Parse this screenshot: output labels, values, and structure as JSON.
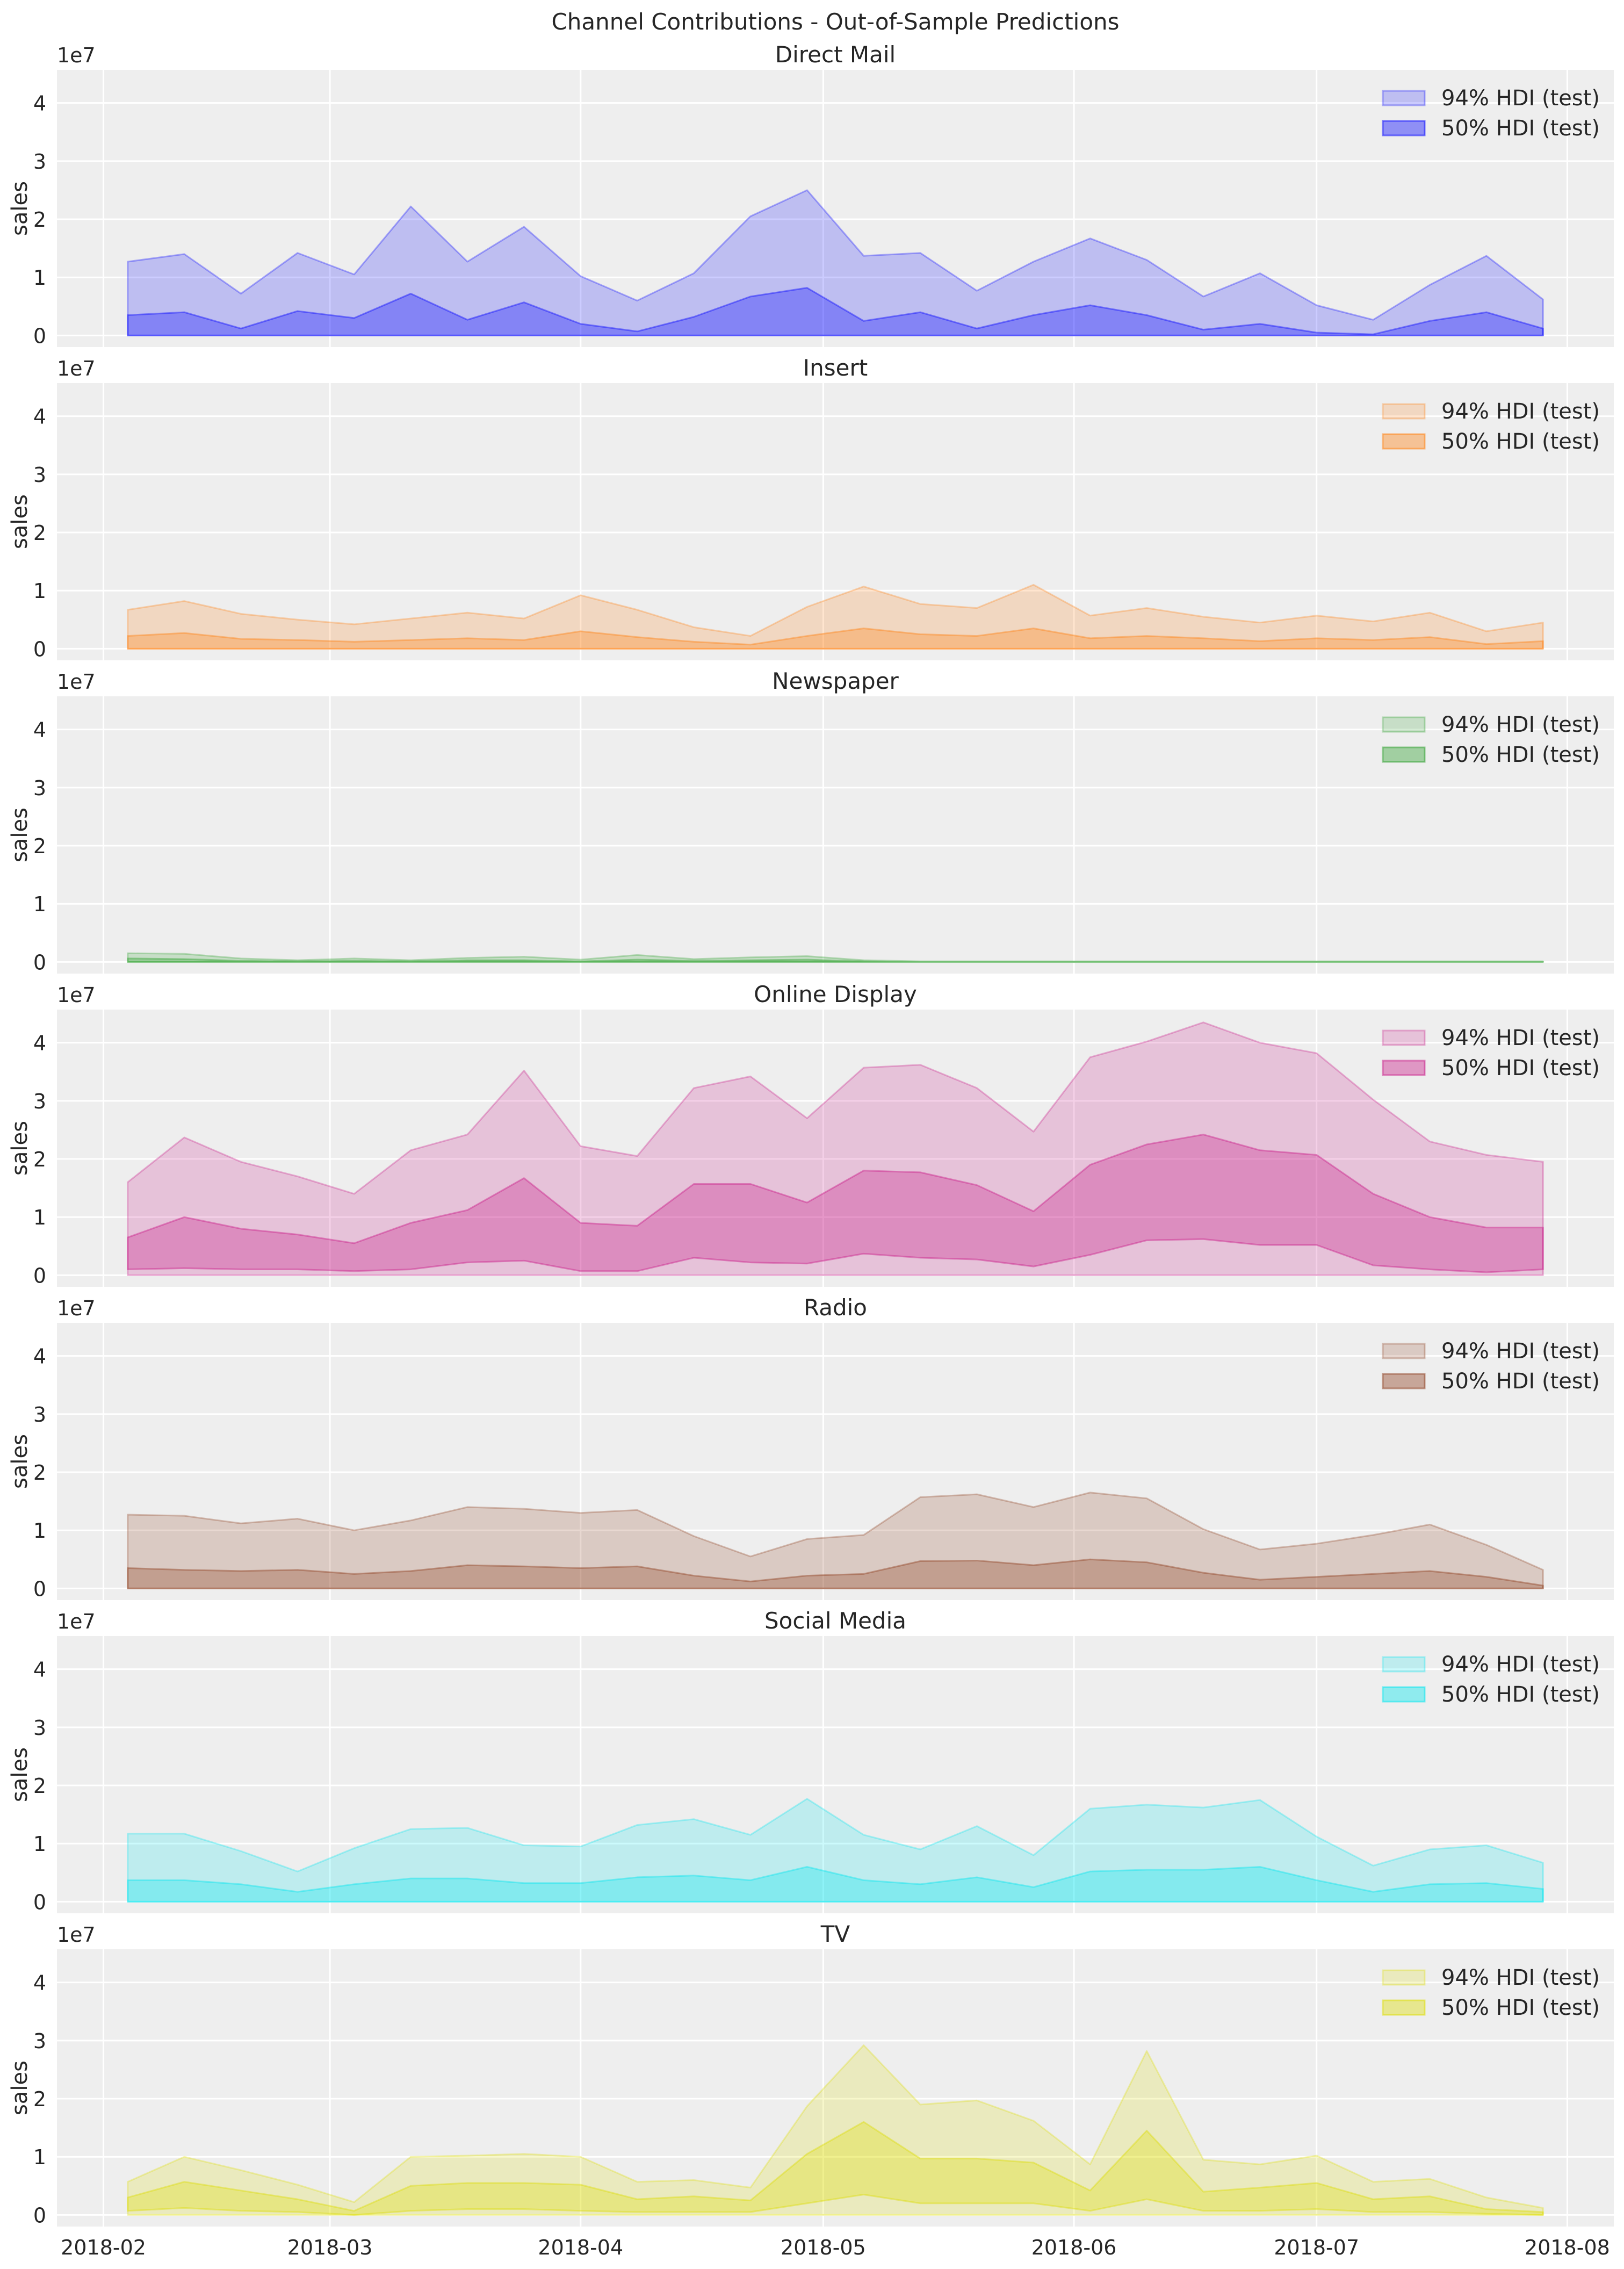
{
  "chart_data": {
    "type": "area",
    "title": "Channel Contributions - Out-of-Sample Predictions",
    "ylabel": "sales",
    "y_offset_label": "1e7",
    "ylim": [
      -0.2,
      4.57
    ],
    "yticks": [
      0,
      1,
      2,
      3,
      4
    ],
    "xticks": [
      "2018-02",
      "2018-03",
      "2018-04",
      "2018-05",
      "2018-06",
      "2018-07",
      "2018-08"
    ],
    "grid": true,
    "legend_placement": "top-right",
    "legend_labels": [
      "94% HDI (test)",
      "50% HDI (test)"
    ],
    "x_start": "2018-02-04",
    "x_frequency": "weekly",
    "panels": [
      {
        "title": "Direct Mail",
        "color": "#0000ff",
        "hdi94_upper": [
          1.27,
          1.4,
          0.72,
          1.42,
          1.05,
          2.22,
          1.27,
          1.87,
          1.02,
          0.6,
          1.07,
          2.05,
          2.5,
          1.37,
          1.42,
          0.77,
          1.27,
          1.67,
          1.3,
          0.67,
          1.07,
          0.52,
          0.27,
          0.87,
          1.37,
          0.62
        ],
        "hdi50_upper": [
          0.35,
          0.4,
          0.12,
          0.42,
          0.3,
          0.72,
          0.27,
          0.57,
          0.2,
          0.07,
          0.32,
          0.67,
          0.82,
          0.25,
          0.4,
          0.12,
          0.35,
          0.52,
          0.35,
          0.1,
          0.2,
          0.05,
          0.02,
          0.25,
          0.4,
          0.12
        ]
      },
      {
        "title": "Insert",
        "color": "#ff7f0e",
        "hdi94_upper": [
          0.67,
          0.82,
          0.6,
          0.5,
          0.42,
          0.52,
          0.62,
          0.52,
          0.92,
          0.67,
          0.37,
          0.22,
          0.72,
          1.07,
          0.77,
          0.7,
          1.1,
          0.57,
          0.7,
          0.55,
          0.45,
          0.57,
          0.47,
          0.62,
          0.3,
          0.45
        ],
        "hdi50_upper": [
          0.22,
          0.27,
          0.17,
          0.15,
          0.12,
          0.15,
          0.18,
          0.15,
          0.3,
          0.2,
          0.12,
          0.07,
          0.22,
          0.35,
          0.25,
          0.22,
          0.35,
          0.18,
          0.22,
          0.18,
          0.13,
          0.18,
          0.15,
          0.2,
          0.08,
          0.13
        ]
      },
      {
        "title": "Newspaper",
        "color": "#2ca02c",
        "hdi94_upper": [
          0.15,
          0.14,
          0.06,
          0.03,
          0.06,
          0.03,
          0.07,
          0.09,
          0.04,
          0.12,
          0.05,
          0.08,
          0.1,
          0.03,
          0.01,
          0.01,
          0.01,
          0.01,
          0.01,
          0.01,
          0.01,
          0.01,
          0.01,
          0.01,
          0.01,
          0.01
        ],
        "hdi50_upper": [
          0.06,
          0.05,
          0.02,
          0.01,
          0.02,
          0.01,
          0.03,
          0.03,
          0.01,
          0.04,
          0.02,
          0.03,
          0.04,
          0.01,
          0.005,
          0.005,
          0.005,
          0.005,
          0.005,
          0.005,
          0.005,
          0.005,
          0.005,
          0.005,
          0.005,
          0.005
        ]
      },
      {
        "title": "Online Display",
        "color": "#c71585",
        "hdi94_upper": [
          1.6,
          2.37,
          1.95,
          1.7,
          1.4,
          2.15,
          2.42,
          3.52,
          2.22,
          2.05,
          3.22,
          3.42,
          2.7,
          3.57,
          3.62,
          3.22,
          2.47,
          3.75,
          4.02,
          4.35,
          4.0,
          3.82,
          3.02,
          2.3,
          2.07,
          1.95
        ],
        "hdi50_upper": [
          0.65,
          1.0,
          0.8,
          0.7,
          0.55,
          0.9,
          1.12,
          1.67,
          0.9,
          0.85,
          1.57,
          1.57,
          1.25,
          1.8,
          1.77,
          1.55,
          1.1,
          1.9,
          2.25,
          2.42,
          2.15,
          2.07,
          1.4,
          1.0,
          0.82,
          0.82
        ],
        "hdi50_lower": [
          0.1,
          0.12,
          0.1,
          0.1,
          0.07,
          0.1,
          0.22,
          0.25,
          0.07,
          0.07,
          0.3,
          0.22,
          0.2,
          0.37,
          0.3,
          0.27,
          0.15,
          0.35,
          0.6,
          0.62,
          0.52,
          0.52,
          0.17,
          0.1,
          0.05,
          0.1
        ]
      },
      {
        "title": "Radio",
        "color": "#8b3a1a",
        "hdi94_upper": [
          1.27,
          1.25,
          1.12,
          1.2,
          1.0,
          1.17,
          1.4,
          1.37,
          1.3,
          1.35,
          0.9,
          0.55,
          0.85,
          0.92,
          1.57,
          1.62,
          1.4,
          1.65,
          1.55,
          1.02,
          0.67,
          0.77,
          0.92,
          1.1,
          0.75,
          0.32
        ],
        "hdi50_upper": [
          0.35,
          0.32,
          0.3,
          0.32,
          0.25,
          0.3,
          0.4,
          0.38,
          0.35,
          0.38,
          0.22,
          0.12,
          0.22,
          0.25,
          0.47,
          0.48,
          0.4,
          0.5,
          0.45,
          0.27,
          0.15,
          0.2,
          0.25,
          0.3,
          0.2,
          0.05
        ]
      },
      {
        "title": "Social Media",
        "color": "#00e5ee",
        "hdi94_upper": [
          1.17,
          1.17,
          0.87,
          0.52,
          0.92,
          1.25,
          1.27,
          0.97,
          0.95,
          1.32,
          1.42,
          1.15,
          1.77,
          1.15,
          0.9,
          1.3,
          0.8,
          1.6,
          1.67,
          1.62,
          1.75,
          1.12,
          0.62,
          0.9,
          0.97,
          0.67
        ],
        "hdi50_upper": [
          0.37,
          0.37,
          0.3,
          0.17,
          0.3,
          0.4,
          0.4,
          0.32,
          0.32,
          0.42,
          0.45,
          0.37,
          0.6,
          0.37,
          0.3,
          0.42,
          0.25,
          0.52,
          0.55,
          0.55,
          0.6,
          0.37,
          0.17,
          0.3,
          0.32,
          0.22
        ]
      },
      {
        "title": "TV",
        "color": "#dddd00",
        "hdi94_upper": [
          0.57,
          1.0,
          0.77,
          0.52,
          0.22,
          1.0,
          1.02,
          1.05,
          1.0,
          0.57,
          0.6,
          0.47,
          1.87,
          2.92,
          1.9,
          1.97,
          1.62,
          0.87,
          2.82,
          0.95,
          0.87,
          1.02,
          0.57,
          0.62,
          0.3,
          0.12
        ],
        "hdi50_upper": [
          0.3,
          0.57,
          0.42,
          0.27,
          0.07,
          0.5,
          0.55,
          0.55,
          0.52,
          0.27,
          0.32,
          0.25,
          1.05,
          1.6,
          0.97,
          0.97,
          0.9,
          0.42,
          1.45,
          0.4,
          0.47,
          0.55,
          0.27,
          0.32,
          0.1,
          0.05
        ],
        "hdi50_lower": [
          0.07,
          0.12,
          0.07,
          0.05,
          0.0,
          0.07,
          0.1,
          0.1,
          0.07,
          0.05,
          0.05,
          0.05,
          0.2,
          0.35,
          0.2,
          0.2,
          0.2,
          0.07,
          0.27,
          0.07,
          0.07,
          0.1,
          0.05,
          0.05,
          0.02,
          0.0
        ]
      }
    ]
  }
}
